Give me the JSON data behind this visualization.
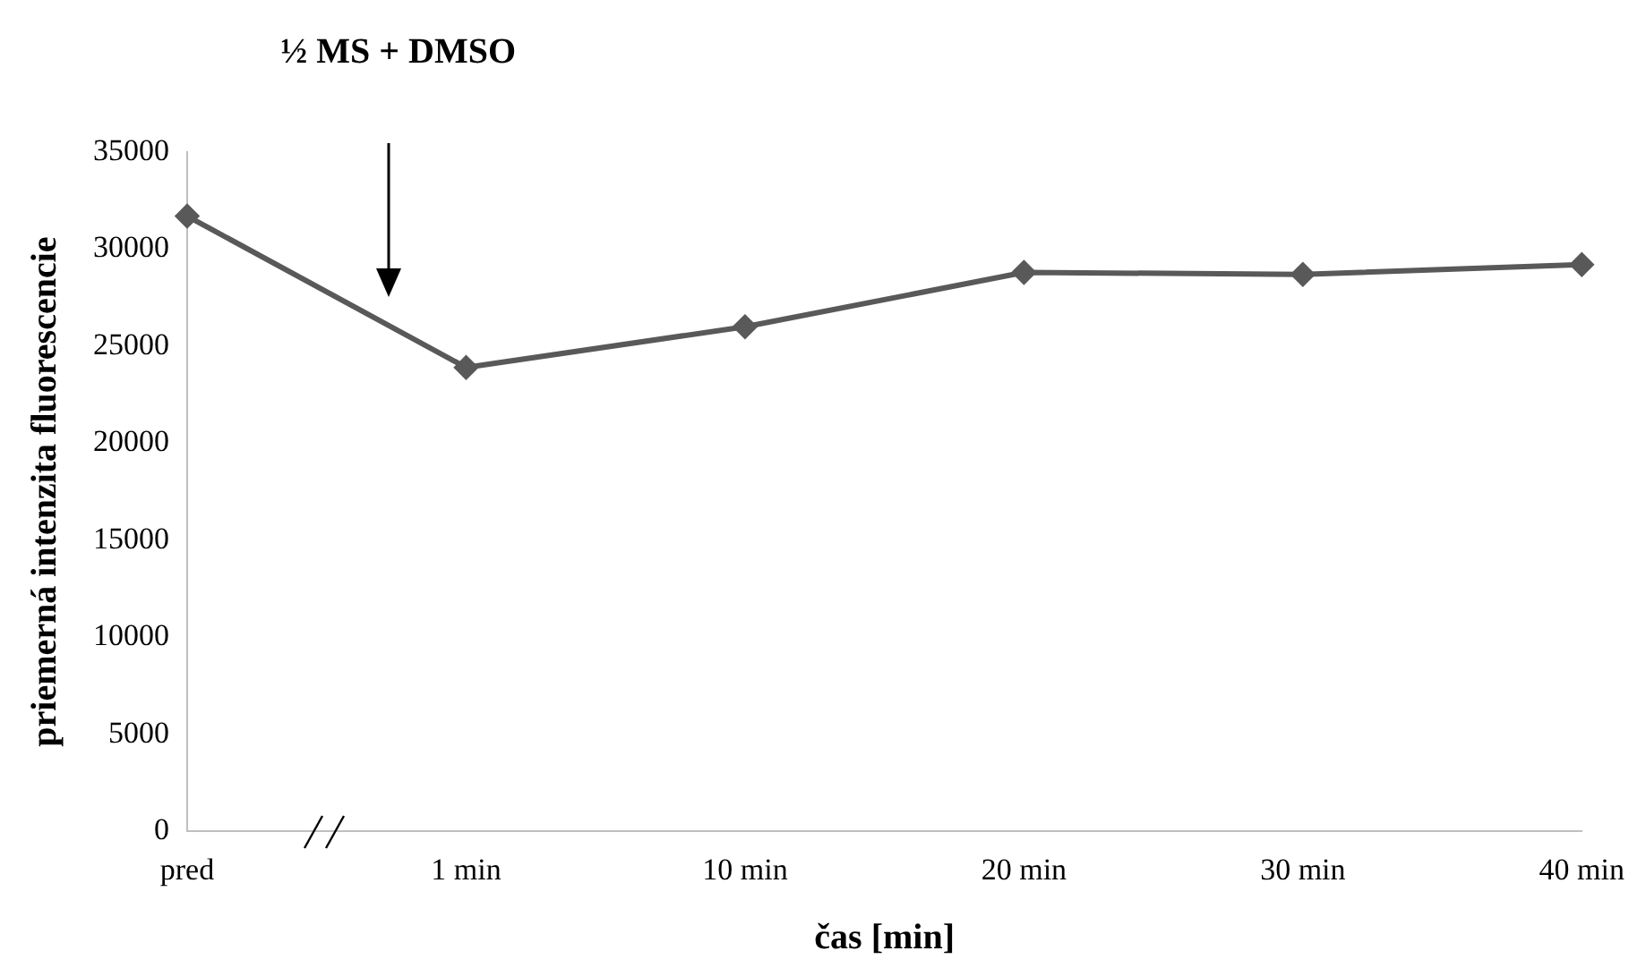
{
  "chart_data": {
    "type": "line",
    "xlabel": "čas [min]",
    "ylabel": "priemerná intenzita fluorescencie",
    "categories": [
      "pred",
      "1 min",
      "10 min",
      "20 min",
      "30 min",
      "40 min"
    ],
    "series": [
      {
        "color": "#595959",
        "values": [
          31700,
          23900,
          26000,
          28800,
          28700,
          29200
        ]
      }
    ],
    "ylim": [
      0,
      35000
    ],
    "yticks": [
      0,
      5000,
      10000,
      15000,
      20000,
      25000,
      30000,
      35000
    ],
    "annotations": [
      "½ MS + DMSO"
    ],
    "grid": false,
    "legend": false,
    "marker": "diamond",
    "line_style": "solid"
  }
}
